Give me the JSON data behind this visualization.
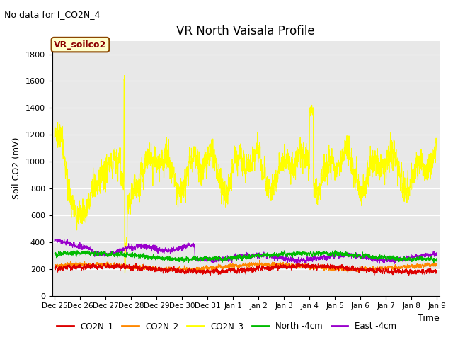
{
  "title": "VR North Vaisala Profile",
  "xlabel": "Time",
  "ylabel": "Soil CO2 (mV)",
  "annotation": "No data for f_CO2N_4",
  "legend_label": "VR_soilco2",
  "ylim": [
    0,
    1900
  ],
  "yticks": [
    0,
    200,
    400,
    600,
    800,
    1000,
    1200,
    1400,
    1600,
    1800
  ],
  "xtick_labels": [
    "Dec 25",
    "Dec 26",
    "Dec 27",
    "Dec 28",
    "Dec 29",
    "Dec 30",
    "Dec 31",
    "Jan 1",
    "Jan 2",
    "Jan 3",
    "Jan 4",
    "Jan 5",
    "Jan 6",
    "Jan 7",
    "Jan 8",
    "Jan 9"
  ],
  "bg_color": "#e8e8e8",
  "series": {
    "CO2N_1": {
      "color": "#dd0000",
      "lw": 0.8
    },
    "CO2N_2": {
      "color": "#ff8800",
      "lw": 0.8
    },
    "CO2N_3": {
      "color": "#ffff00",
      "lw": 0.8
    },
    "North_4cm": {
      "color": "#00bb00",
      "lw": 0.8
    },
    "East_4cm": {
      "color": "#9900cc",
      "lw": 0.8
    }
  },
  "legend_entries": [
    "CO2N_1",
    "CO2N_2",
    "CO2N_3",
    "North -4cm",
    "East -4cm"
  ],
  "legend_colors": [
    "#dd0000",
    "#ff8800",
    "#ffff00",
    "#00bb00",
    "#9900cc"
  ]
}
